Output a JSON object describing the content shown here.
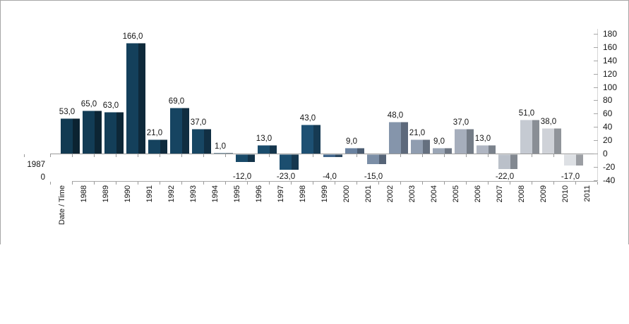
{
  "colors": {
    "frame_border": "#a6a6a6",
    "axis_line": "#9a9a9a",
    "bottom_axis_line": "#a6a6a6",
    "right_axis_line": "#d6d6d6",
    "tick": "#9a9a9a",
    "text": "#141414"
  },
  "corner": {
    "year_label": "1987",
    "zero_label": "0"
  },
  "chart_data": {
    "type": "bar",
    "title": "",
    "x_axis_title": "Date / Time",
    "decimal_label_format": "comma, one decimal",
    "x_tick_labels": [
      "Date / Time",
      "1988",
      "1989",
      "1990",
      "1991",
      "1992",
      "1993",
      "1994",
      "1995",
      "1996",
      "1997",
      "1998",
      "1999",
      "2000",
      "2001",
      "2002",
      "2003",
      "2004",
      "2005",
      "2006",
      "2007",
      "2008",
      "2009",
      "2010",
      "2011"
    ],
    "y_axis": {
      "side": "right",
      "min": -40,
      "max": 180,
      "step": 20,
      "tick_labels": [
        "180",
        "160",
        "140",
        "120",
        "100",
        "80",
        "60",
        "40",
        "20",
        "0",
        "-20",
        "-40"
      ],
      "tick_values": [
        180,
        160,
        140,
        120,
        100,
        80,
        60,
        40,
        20,
        0,
        -20,
        -40
      ]
    },
    "legend": "none",
    "grid": "off",
    "bars": [
      {
        "slot": 0,
        "category": "Date / Time",
        "value": 53,
        "label": "53,0",
        "light": "#113a52",
        "dark": "#0b2331"
      },
      {
        "slot": 1,
        "category": "1988",
        "value": 65,
        "label": "65,0",
        "light": "#123c55",
        "dark": "#0c2534"
      },
      {
        "slot": 2,
        "category": "1989",
        "value": 63,
        "label": "63,0",
        "light": "#133e58",
        "dark": "#0d2737"
      },
      {
        "slot": 3,
        "category": "1990",
        "value": 166,
        "label": "166,0",
        "light": "#14405b",
        "dark": "#0e293a"
      },
      {
        "slot": 4,
        "category": "1991",
        "value": 21,
        "label": "21,0",
        "light": "#15425e",
        "dark": "#0f2b3d"
      },
      {
        "slot": 5,
        "category": "1992",
        "value": 69,
        "label": "69,0",
        "light": "#164461",
        "dark": "#102d40"
      },
      {
        "slot": 6,
        "category": "1993",
        "value": 37,
        "label": "37,0",
        "light": "#174663",
        "dark": "#112f43"
      },
      {
        "slot": 7,
        "category": "1994",
        "value": 1,
        "label": "1,0",
        "light": "#184866",
        "dark": "#123146"
      },
      {
        "slot": 8,
        "category": "1995",
        "value": -12,
        "label": "-12,0",
        "light": "#194a69",
        "dark": "#133349"
      },
      {
        "slot": 9,
        "category": "1996",
        "value": 13,
        "label": "13,0",
        "light": "#1a4c6c",
        "dark": "#14354c"
      },
      {
        "slot": 10,
        "category": "1997",
        "value": -23,
        "label": "-23,0",
        "light": "#1b4e6f",
        "dark": "#15374f"
      },
      {
        "slot": 11,
        "category": "1998",
        "value": 43,
        "label": "43,0",
        "light": "#1d5073",
        "dark": "#163a53"
      },
      {
        "slot": 12,
        "category": "1999",
        "value": -4,
        "label": "-4,0",
        "light": "#3f648a",
        "dark": "#2c475f"
      },
      {
        "slot": 13,
        "category": "2000",
        "value": 9,
        "label": "9,0",
        "light": "#6a82a0",
        "dark": "#4a5b70"
      },
      {
        "slot": 14,
        "category": "2001",
        "value": -15,
        "label": "-15,0",
        "light": "#7b8ea6",
        "dark": "#566477"
      },
      {
        "slot": 15,
        "category": "2002",
        "value": 48,
        "label": "48,0",
        "light": "#8595ab",
        "dark": "#5d697b"
      },
      {
        "slot": 16,
        "category": "2003",
        "value": 21,
        "label": "21,0",
        "light": "#909db0",
        "dark": "#65707f"
      },
      {
        "slot": 17,
        "category": "2004",
        "value": 9,
        "label": "9,0",
        "light": "#9ba6b6",
        "dark": "#6d7683"
      },
      {
        "slot": 18,
        "category": "2005",
        "value": 37,
        "label": "37,0",
        "light": "#a6aebc",
        "dark": "#747c87"
      },
      {
        "slot": 19,
        "category": "2006",
        "value": 13,
        "label": "13,0",
        "light": "#b0b6c2",
        "dark": "#7b828c"
      },
      {
        "slot": 20,
        "category": "2007",
        "value": -22,
        "label": "-22,0",
        "light": "#bac0c9",
        "dark": "#828890"
      },
      {
        "slot": 21,
        "category": "2008",
        "value": 51,
        "label": "51,0",
        "light": "#c5cad2",
        "dark": "#898e95"
      },
      {
        "slot": 22,
        "category": "2009",
        "value": 38,
        "label": "38,0",
        "light": "#cfd2d8",
        "dark": "#90949a"
      },
      {
        "slot": 23,
        "category": "2010",
        "value": -17,
        "label": "-17,0",
        "light": "#dde0e4",
        "dark": "#9b9ea3"
      }
    ]
  }
}
